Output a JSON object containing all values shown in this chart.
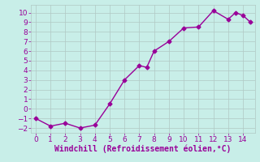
{
  "x": [
    0,
    1,
    2,
    3,
    4,
    5,
    6,
    7,
    7.5,
    8,
    9,
    10,
    11,
    12,
    13,
    13.5,
    14,
    14.5
  ],
  "y": [
    -1,
    -1.8,
    -1.5,
    -2,
    -1.7,
    0.5,
    3.0,
    4.5,
    4.3,
    6.0,
    7.0,
    8.4,
    8.5,
    10.2,
    9.3,
    10.0,
    9.7,
    9.0
  ],
  "line_color": "#990099",
  "marker": "D",
  "markersize": 2.5,
  "linewidth": 1.0,
  "bg_color": "#c8eee8",
  "grid_color": "#b0c8c4",
  "xlabel": "Windchill (Refroidissement éolien,°C)",
  "xlabel_color": "#990099",
  "xlabel_fontsize": 7,
  "tick_color": "#990099",
  "tick_fontsize": 6.5,
  "xlim": [
    -0.3,
    14.8
  ],
  "ylim": [
    -2.5,
    10.8
  ],
  "yticks": [
    -2,
    -1,
    0,
    1,
    2,
    3,
    4,
    5,
    6,
    7,
    8,
    9,
    10
  ],
  "xticks": [
    0,
    1,
    2,
    3,
    4,
    5,
    6,
    7,
    8,
    9,
    10,
    11,
    12,
    13,
    14
  ]
}
